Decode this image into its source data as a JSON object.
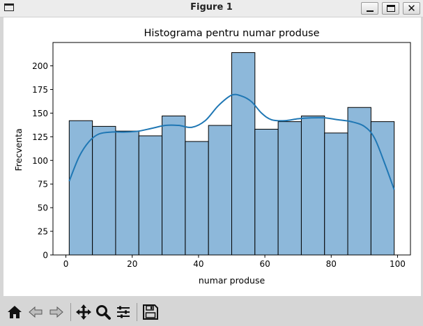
{
  "window": {
    "title": "Figure 1",
    "min_icon": "minimize-icon",
    "max_icon": "maximize-icon",
    "close_icon": "close-icon",
    "close_glyph": "✕"
  },
  "toolbar": {
    "icons": [
      "home-icon",
      "back-arrow-icon",
      "forward-arrow-icon",
      "pan-icon",
      "zoom-icon",
      "subplots-icon",
      "save-icon"
    ]
  },
  "colors": {
    "bar_fill": "#8db8da",
    "bar_edge": "#000000",
    "kde_line": "#1f77b4"
  },
  "chart_data": {
    "type": "bar",
    "title": "Histograma pentru numar produse",
    "xlabel": "numar produse",
    "ylabel": "Frecventa",
    "bin_edges": [
      1,
      8,
      15,
      22,
      29,
      36,
      43,
      50,
      57,
      64,
      71,
      78,
      85,
      92,
      99
    ],
    "values": [
      142,
      136,
      131,
      126,
      147,
      120,
      137,
      214,
      133,
      141,
      147,
      129,
      156,
      141
    ],
    "xlim": [
      -3.9,
      103.9
    ],
    "ylim": [
      0,
      224.7
    ],
    "xticks": [
      0,
      20,
      40,
      60,
      80,
      100
    ],
    "yticks": [
      0,
      25,
      50,
      75,
      100,
      125,
      150,
      175,
      200
    ],
    "kde": {
      "x": [
        1,
        4,
        7,
        10,
        14,
        18,
        22,
        26,
        30,
        34,
        38,
        42,
        46,
        50,
        53,
        56,
        59,
        62,
        66,
        70,
        74,
        78,
        82,
        86,
        90,
        93,
        96,
        99
      ],
      "y": [
        78,
        104,
        120,
        128,
        130,
        130,
        131,
        134,
        137,
        137,
        135,
        142,
        158,
        169,
        168,
        162,
        150,
        143,
        142,
        144,
        145,
        145,
        143,
        141,
        136,
        124,
        98,
        69
      ]
    },
    "grid": false,
    "legend": "none"
  }
}
